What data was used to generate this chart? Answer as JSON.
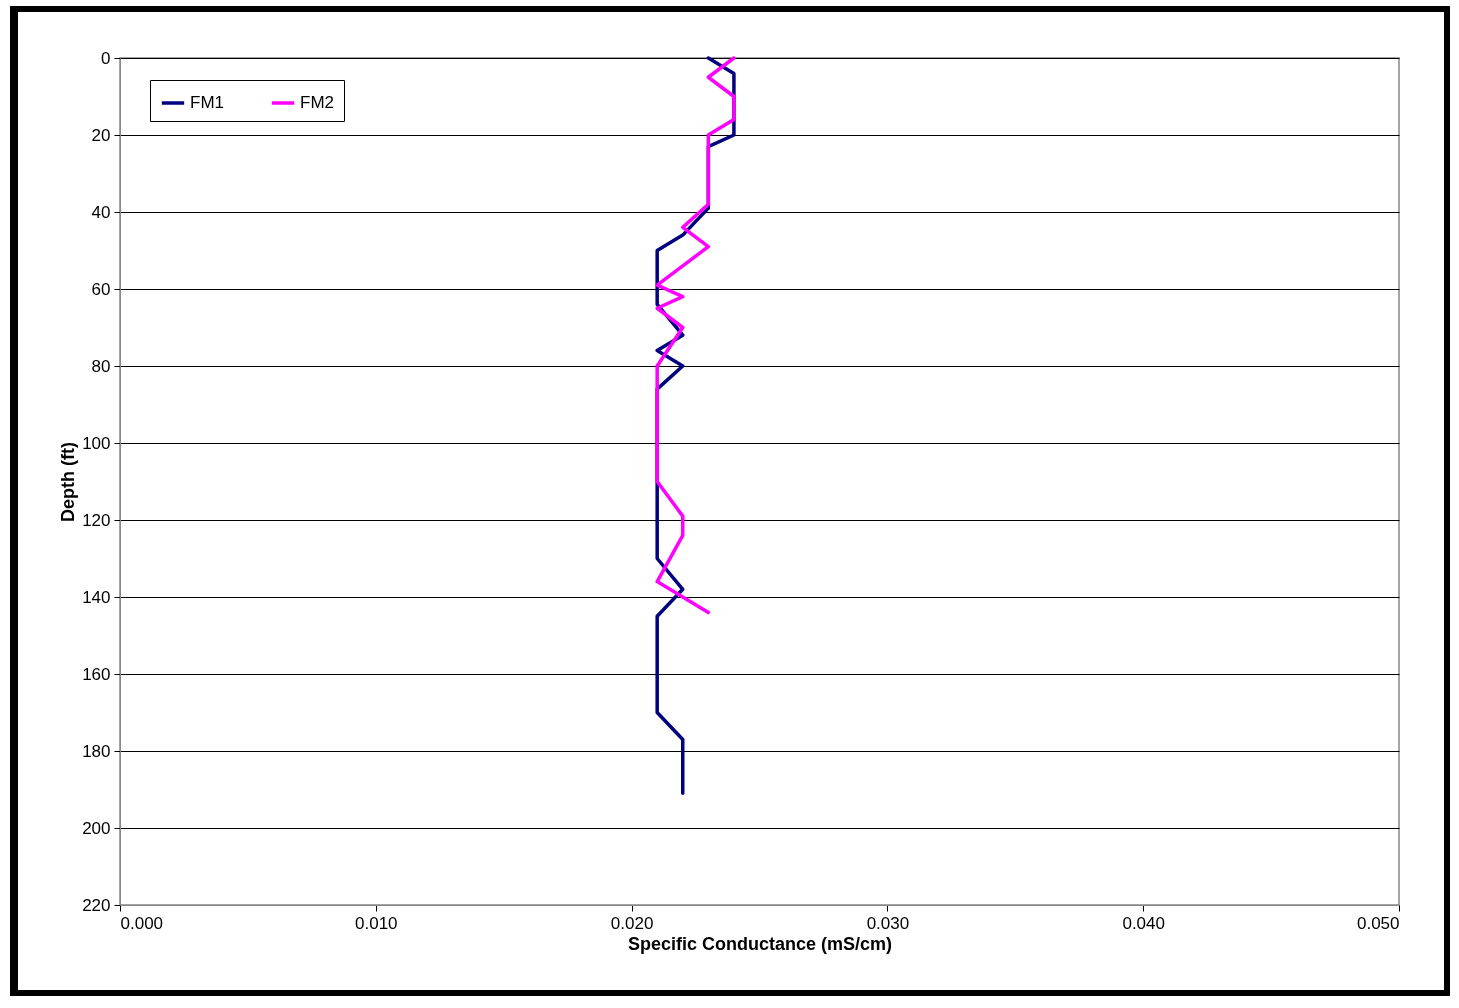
{
  "chart_data": {
    "type": "line",
    "xlabel": "Specific Conductance (mS/cm)",
    "ylabel": "Depth (ft)",
    "xlim": [
      0,
      0.05
    ],
    "xticks": [
      {
        "value": 0,
        "label": "0.000"
      },
      {
        "value": 0.01,
        "label": "0.010"
      },
      {
        "value": 0.02,
        "label": "0.020"
      },
      {
        "value": 0.03,
        "label": "0.030"
      },
      {
        "value": 0.04,
        "label": "0.040"
      },
      {
        "value": 0.05,
        "label": "0.050"
      }
    ],
    "ylim": [
      220,
      0
    ],
    "yticks": [
      0,
      20,
      40,
      60,
      80,
      100,
      120,
      140,
      160,
      180,
      200,
      220
    ],
    "grid": "y",
    "legend": "top left",
    "series": [
      {
        "name": "FM1",
        "color": "#000080",
        "x": [
          0.023,
          0.024,
          0.024,
          0.023,
          0.023,
          0.022,
          0.021,
          0.021,
          0.022,
          0.021,
          0.022,
          0.021,
          0.021,
          0.022,
          0.021,
          0.021,
          0.022,
          0.022
        ],
        "values": [
          0,
          4,
          20,
          23,
          39,
          46,
          50,
          64,
          72,
          76,
          80,
          86,
          130,
          138,
          145,
          170,
          177,
          191
        ]
      },
      {
        "name": "FM2",
        "color": "#ff00ff",
        "x": [
          0.024,
          0.023,
          0.024,
          0.024,
          0.023,
          0.023,
          0.022,
          0.023,
          0.022,
          0.021,
          0.022,
          0.021,
          0.022,
          0.021,
          0.021,
          0.022,
          0.022,
          0.021,
          0.023
        ],
        "values": [
          0,
          5,
          10,
          16,
          20,
          38,
          44,
          49,
          54,
          59,
          62,
          65,
          70,
          80,
          110,
          119,
          124,
          136,
          144
        ]
      }
    ]
  }
}
